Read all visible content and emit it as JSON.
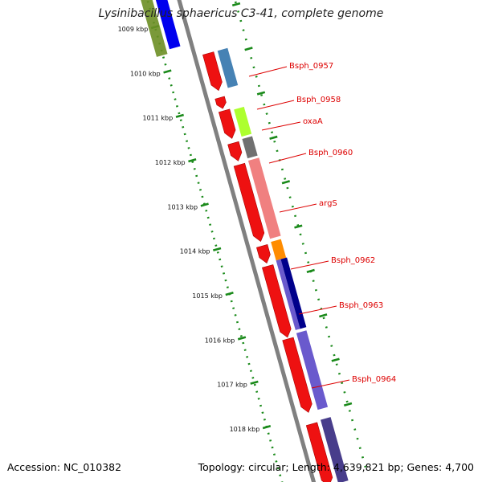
{
  "header": {
    "title": "Lysinibacillus sphaericus C3-41, complete genome"
  },
  "footer": {
    "accession": "Accession: NC_010382",
    "topology": "Topology: circular; Length: 4,639,821 bp; Genes: 4,700"
  },
  "map": {
    "tick_labels": [
      "1009 kbp",
      "1010 kbp",
      "1011 kbp",
      "1012 kbp",
      "1013 kbp",
      "1014 kbp",
      "1015 kbp",
      "1016 kbp",
      "1017 kbp",
      "1018 kbp"
    ],
    "colors": {
      "backbone": "#808080",
      "tick_dots": "#1a8a1a",
      "gene_arrow": "#ee1111",
      "label_text": "#dd0000",
      "label_line": "#dd0000"
    },
    "gene_labels": [
      "Bsph_0957",
      "Bsph_0958",
      "oxaA",
      "Bsph_0960",
      "argS",
      "Bsph_0962",
      "Bsph_0963",
      "Bsph_0964"
    ],
    "cog_colors": [
      "#6b8e23",
      "#0000ee",
      "#4682b4",
      "#adff2f",
      "#707070",
      "#f08080",
      "#ff8c00",
      "#00008b",
      "#6a5acd",
      "#483d8b"
    ]
  }
}
